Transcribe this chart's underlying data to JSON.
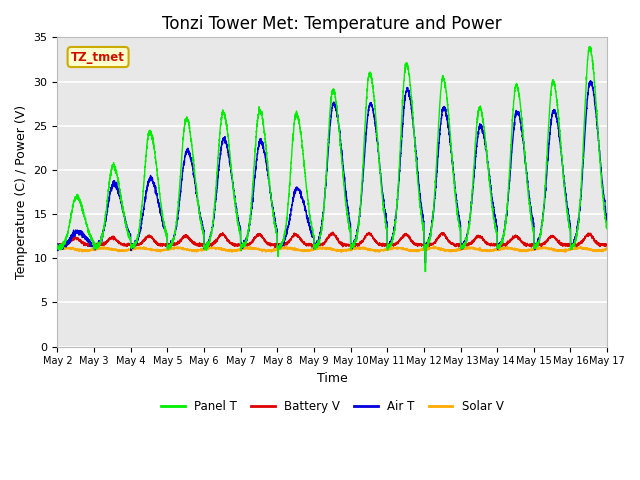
{
  "title": "Tonzi Tower Met: Temperature and Power",
  "xlabel": "Time",
  "ylabel": "Temperature (C) / Power (V)",
  "annotation": "TZ_tmet",
  "ylim": [
    0,
    35
  ],
  "yticks": [
    0,
    5,
    10,
    15,
    20,
    25,
    30,
    35
  ],
  "x_labels": [
    "May 2",
    "May 3",
    "May 4",
    "May 5",
    "May 6",
    "May 7",
    "May 8",
    "May 9",
    "May 10",
    "May 11",
    "May 12",
    "May 13",
    "May 14",
    "May 15",
    "May 16",
    "May 17"
  ],
  "colors": {
    "panel_t": "#00ee00",
    "battery_v": "#dd0000",
    "air_t": "#0000dd",
    "solar_v": "#ffaa00"
  },
  "legend": [
    "Panel T",
    "Battery V",
    "Air T",
    "Solar V"
  ],
  "title_fontsize": 12,
  "axis_fontsize": 9,
  "tick_fontsize": 8,
  "panel_day_peaks": [
    17.0,
    20.5,
    24.3,
    25.8,
    26.5,
    26.7,
    26.3,
    29.0,
    30.9,
    32.0,
    30.4,
    27.0,
    29.6,
    30.0,
    33.8
  ],
  "air_day_peaks": [
    13.0,
    18.5,
    19.0,
    22.2,
    23.5,
    23.2,
    17.9,
    27.5,
    27.5,
    29.1,
    27.0,
    24.9,
    26.6,
    26.7,
    30.0
  ],
  "night_trough": 11.2,
  "battery_base": 11.5,
  "battery_peak_extra": [
    0.8,
    0.8,
    1.0,
    1.0,
    1.2,
    1.2,
    1.2,
    1.3,
    1.3,
    1.2,
    1.3,
    1.0,
    1.0,
    1.0,
    1.2
  ],
  "solar_base": 11.0
}
